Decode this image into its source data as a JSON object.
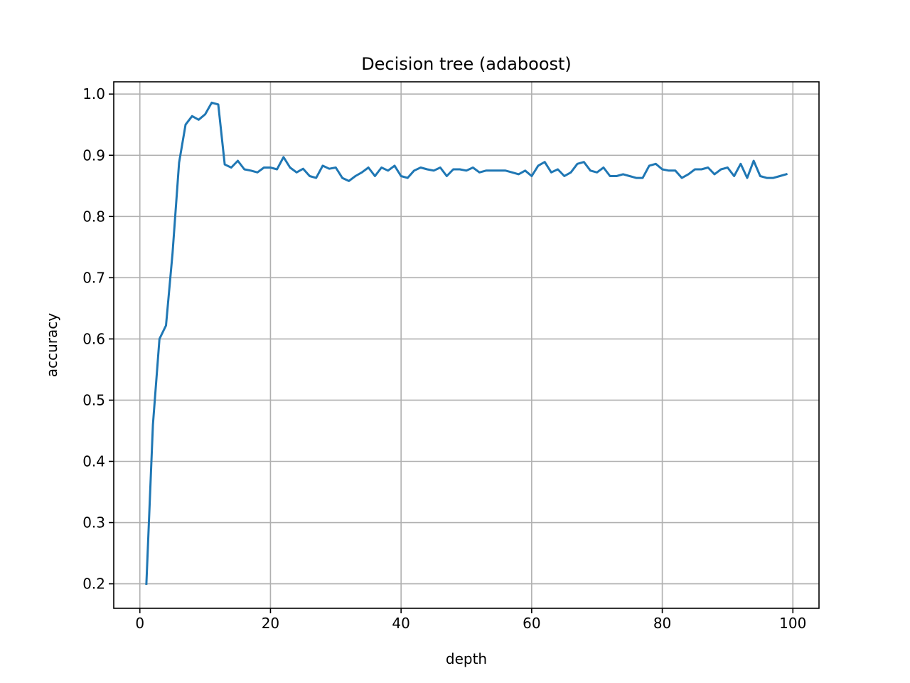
{
  "chart_data": {
    "type": "line",
    "title": "Decision tree (adaboost)",
    "xlabel": "depth",
    "ylabel": "accuracy",
    "xlim": [
      -4,
      104
    ],
    "ylim": [
      0.16,
      1.02
    ],
    "xticks": [
      0,
      20,
      40,
      60,
      80,
      100
    ],
    "yticks": [
      0.2,
      0.3,
      0.4,
      0.5,
      0.6,
      0.7,
      0.8,
      0.9,
      1.0
    ],
    "xtick_labels": [
      "0",
      "20",
      "40",
      "60",
      "80",
      "100"
    ],
    "ytick_labels": [
      "0.2",
      "0.3",
      "0.4",
      "0.5",
      "0.6",
      "0.7",
      "0.8",
      "0.9",
      "1.0"
    ],
    "grid": true,
    "line_color": "#1f77b4",
    "x": [
      1,
      2,
      3,
      4,
      5,
      6,
      7,
      8,
      9,
      10,
      11,
      12,
      13,
      14,
      15,
      16,
      17,
      18,
      19,
      20,
      21,
      22,
      23,
      24,
      25,
      26,
      27,
      28,
      29,
      30,
      31,
      32,
      33,
      34,
      35,
      36,
      37,
      38,
      39,
      40,
      41,
      42,
      43,
      44,
      45,
      46,
      47,
      48,
      49,
      50,
      51,
      52,
      53,
      54,
      55,
      56,
      57,
      58,
      59,
      60,
      61,
      62,
      63,
      64,
      65,
      66,
      67,
      68,
      69,
      70,
      71,
      72,
      73,
      74,
      75,
      76,
      77,
      78,
      79,
      80,
      81,
      82,
      83,
      84,
      85,
      86,
      87,
      88,
      89,
      90,
      91,
      92,
      93,
      94,
      95,
      96,
      97,
      98,
      99
    ],
    "y": [
      0.2,
      0.46,
      0.6,
      0.622,
      0.74,
      0.888,
      0.95,
      0.964,
      0.958,
      0.967,
      0.986,
      0.983,
      0.885,
      0.88,
      0.891,
      0.877,
      0.875,
      0.872,
      0.88,
      0.88,
      0.877,
      0.897,
      0.88,
      0.872,
      0.878,
      0.866,
      0.863,
      0.883,
      0.878,
      0.88,
      0.863,
      0.858,
      0.866,
      0.872,
      0.88,
      0.866,
      0.88,
      0.875,
      0.883,
      0.866,
      0.863,
      0.875,
      0.88,
      0.877,
      0.875,
      0.88,
      0.866,
      0.877,
      0.877,
      0.875,
      0.88,
      0.872,
      0.875,
      0.875,
      0.875,
      0.875,
      0.872,
      0.869,
      0.875,
      0.866,
      0.883,
      0.889,
      0.872,
      0.877,
      0.866,
      0.872,
      0.886,
      0.889,
      0.875,
      0.872,
      0.88,
      0.866,
      0.866,
      0.869,
      0.866,
      0.863,
      0.863,
      0.883,
      0.886,
      0.877,
      0.875,
      0.875,
      0.863,
      0.869,
      0.877,
      0.877,
      0.88,
      0.869,
      0.877,
      0.88,
      0.866,
      0.886,
      0.863,
      0.891,
      0.866,
      0.863,
      0.863,
      0.866,
      0.869
    ]
  }
}
